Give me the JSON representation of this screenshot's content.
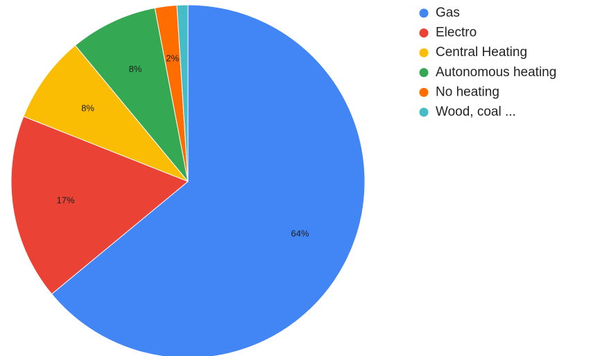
{
  "chart_data": {
    "type": "pie",
    "title": "",
    "legend_position": "right",
    "categories": [
      "Gas",
      "Electro",
      "Central Heating",
      "Autonomous heating",
      "No heating",
      "Wood, coal ..."
    ],
    "values": [
      64,
      17,
      8,
      8,
      2,
      1
    ],
    "labels": [
      "64%",
      "17%",
      "8%",
      "8%",
      "2%",
      ""
    ],
    "colors": [
      "#4285f4",
      "#ea4335",
      "#fbbc04",
      "#34a853",
      "#ff6d01",
      "#46bdc6"
    ]
  }
}
